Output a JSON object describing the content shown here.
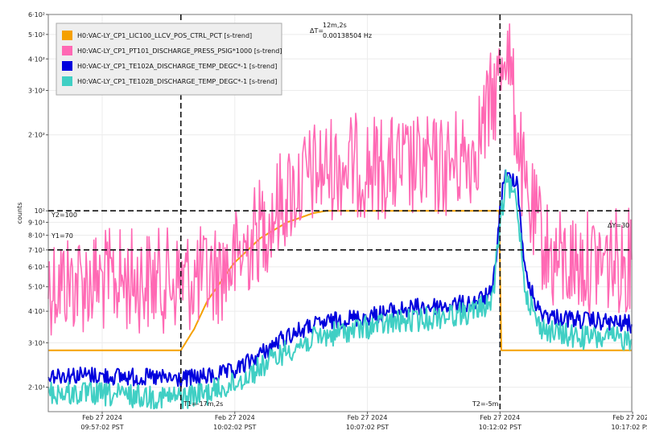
{
  "chart_data": {
    "type": "line",
    "ylabel": "counts",
    "y_scale": "log",
    "ylim": [
      16,
      600
    ],
    "y_ticks": [
      {
        "value": 20,
        "label": "2·10¹"
      },
      {
        "value": 30,
        "label": "3·10¹"
      },
      {
        "value": 40,
        "label": "4·10¹"
      },
      {
        "value": 50,
        "label": "5·10¹"
      },
      {
        "value": 60,
        "label": "6·10¹"
      },
      {
        "value": 70,
        "label": "7·10¹"
      },
      {
        "value": 80,
        "label": "8·10¹"
      },
      {
        "value": 90,
        "label": "9·10¹"
      },
      {
        "value": 100,
        "label": "10²"
      },
      {
        "value": 200,
        "label": "2·10²"
      },
      {
        "value": 300,
        "label": "3·10²"
      },
      {
        "value": 400,
        "label": "4·10²"
      },
      {
        "value": 500,
        "label": "5·10²"
      },
      {
        "value": 600,
        "label": "6·10²"
      }
    ],
    "xlim": [
      "2024-02-27 09:55:00 PST",
      "2024-02-27 10:17:00 PST"
    ],
    "x_ticks": [
      {
        "value": "2024-02-27 09:57:02 PST",
        "date": "Feb 27 2024",
        "time": "09:57:02 PST"
      },
      {
        "value": "2024-02-27 10:02:02 PST",
        "date": "Feb 27 2024",
        "time": "10:02:02 PST"
      },
      {
        "value": "2024-02-27 10:07:02 PST",
        "date": "Feb 27 2024",
        "time": "10:07:02 PST"
      },
      {
        "value": "2024-02-27 10:12:02 PST",
        "date": "Feb 27 2024",
        "time": "10:12:02 PST"
      },
      {
        "value": "2024-02-27 10:17:02 PST",
        "date": "Feb 27 2024",
        "time": "10:17:02 PST"
      }
    ],
    "grid": true,
    "legend_position": "top-left",
    "series": [
      {
        "name": "H0:VAC-LY_CP1_LIC100_LLCV_POS_CTRL_PCT [s-trend]",
        "color": "#f5a000",
        "x": [
          "09:55:00",
          "10:00:00",
          "10:00:30",
          "10:01:00",
          "10:02:00",
          "10:03:00",
          "10:04:00",
          "10:05:00",
          "10:05:30",
          "10:08:00",
          "10:10:00",
          "10:12:00",
          "10:12:05",
          "10:14:00",
          "10:17:00"
        ],
        "y": [
          28,
          28,
          34,
          44,
          62,
          78,
          90,
          98,
          100,
          100,
          100,
          100,
          28,
          28,
          28
        ]
      },
      {
        "name": "H0:VAC-LY_CP1_PT101_DISCHARGE_PRESS_PSIG*1000 [s-trend]",
        "color": "#ff69b4",
        "x": [
          "09:55:00",
          "09:58:00",
          "10:00:00",
          "10:01:00",
          "10:02:00",
          "10:03:00",
          "10:04:00",
          "10:05:00",
          "10:06:00",
          "10:07:00",
          "10:08:00",
          "10:09:00",
          "10:10:00",
          "10:11:00",
          "10:11:30",
          "10:12:00",
          "10:12:15",
          "10:12:30",
          "10:13:00",
          "10:14:00",
          "10:15:00",
          "10:16:00",
          "10:17:00"
        ],
        "y": [
          52,
          53,
          53,
          54,
          62,
          85,
          115,
          140,
          152,
          150,
          148,
          147,
          150,
          170,
          230,
          330,
          500,
          300,
          110,
          63,
          62,
          63,
          64
        ]
      },
      {
        "name": "H0:VAC-LY_CP1_TE102A_DISCHARGE_TEMP_DEGC*-1 [s-trend]",
        "color": "#0000dd",
        "x": [
          "09:55:00",
          "09:58:00",
          "10:00:00",
          "10:01:00",
          "10:02:00",
          "10:03:00",
          "10:04:00",
          "10:05:00",
          "10:06:00",
          "10:07:00",
          "10:08:00",
          "10:09:00",
          "10:10:00",
          "10:11:00",
          "10:11:45",
          "10:12:00",
          "10:12:10",
          "10:12:40",
          "10:13:00",
          "10:13:30",
          "10:14:00",
          "10:15:00",
          "10:17:00"
        ],
        "y": [
          22.5,
          22,
          21.5,
          22,
          23,
          27,
          32,
          35,
          37,
          38,
          40,
          41.5,
          42,
          43,
          47,
          90,
          135,
          135,
          55,
          40,
          38,
          37,
          35.5
        ]
      },
      {
        "name": "H0:VAC-LY_CP1_TE102B_DISCHARGE_TEMP_DEGC*-1 [s-trend]",
        "color": "#40cfc4",
        "x": [
          "09:55:00",
          "09:58:00",
          "10:00:00",
          "10:01:00",
          "10:02:00",
          "10:03:00",
          "10:04:00",
          "10:05:00",
          "10:06:00",
          "10:07:00",
          "10:08:00",
          "10:09:00",
          "10:10:00",
          "10:11:00",
          "10:11:45",
          "10:12:00",
          "10:12:15",
          "10:12:40",
          "10:13:00",
          "10:13:30",
          "10:14:00",
          "10:15:00",
          "10:17:00"
        ],
        "y": [
          19,
          18.5,
          18.2,
          19,
          20.5,
          24,
          28,
          31,
          33,
          34.5,
          36,
          37,
          38.5,
          39.5,
          44,
          80,
          130,
          110,
          48,
          35,
          33,
          31.5,
          31
        ]
      }
    ],
    "cursors": {
      "T1": {
        "x": "10:00:00",
        "label": "T1=-17m,2s"
      },
      "T2": {
        "x": "10:12:02",
        "label": "T2=-5m"
      },
      "Y1": {
        "value": 70,
        "label": "Y1=70"
      },
      "Y2": {
        "value": 100,
        "label": "Y2=100"
      },
      "deltaT_prefix": "ΔT=",
      "deltaT": "12m,2s",
      "deltaT_freq": "0.00138504 Hz",
      "deltaY": "ΔY=30"
    }
  }
}
